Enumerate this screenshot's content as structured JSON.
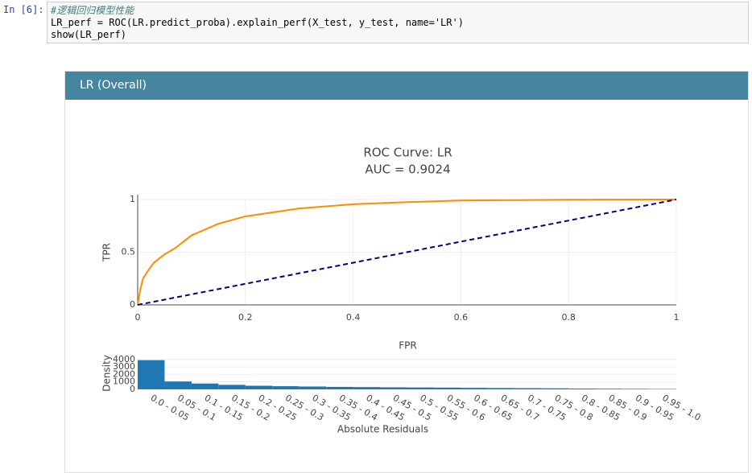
{
  "cell": {
    "prompt": "In  [6]:",
    "code": [
      "#逻辑回归模型性能",
      "LR_perf = ROC(LR.predict_proba).explain_perf(X_test, y_test, name='LR')",
      "show(LR_perf)"
    ]
  },
  "panel": {
    "title": "LR (Overall)"
  },
  "chart_data": [
    {
      "type": "line",
      "title": "ROC Curve: LR",
      "subtitle": "AUC = 0.9024",
      "x_label": "FPR",
      "y_label": "TPR",
      "xlim": [
        0,
        1
      ],
      "ylim": [
        0,
        1
      ],
      "xticks": [
        0,
        0.2,
        0.4,
        0.6,
        0.8,
        1
      ],
      "yticks": [
        0,
        0.5,
        1
      ],
      "grid": true,
      "series": [
        {
          "color": "#ff8c00",
          "dash": false,
          "x": [
            0,
            0.005,
            0.01,
            0.02,
            0.03,
            0.05,
            0.07,
            0.1,
            0.15,
            0.2,
            0.3,
            0.4,
            0.5,
            0.6,
            0.8,
            1
          ],
          "values": [
            0,
            0.15,
            0.25,
            0.33,
            0.4,
            0.48,
            0.54,
            0.66,
            0.77,
            0.84,
            0.915,
            0.955,
            0.975,
            0.99,
            0.998,
            1
          ]
        },
        {
          "color": "#000080",
          "dash": true,
          "x": [
            0,
            1
          ],
          "values": [
            0,
            1
          ]
        }
      ]
    },
    {
      "type": "bar",
      "x_label": "Absolute Residuals",
      "y_label": "Density",
      "color": "#1f77b4",
      "ylim": [
        0,
        4300
      ],
      "yticks": [
        0,
        1000,
        2000,
        3000,
        4000
      ],
      "grid": true,
      "categories": [
        "0.0 - 0.05",
        "0.05 - 0.1",
        "0.1 - 0.15",
        "0.15 - 0.2",
        "0.2 - 0.25",
        "0.25 - 0.3",
        "0.3 - 0.35",
        "0.35 - 0.4",
        "0.4 - 0.45",
        "0.45 - 0.5",
        "0.5 - 0.55",
        "0.55 - 0.6",
        "0.6 - 0.65",
        "0.65 - 0.7",
        "0.7 - 0.75",
        "0.75 - 0.8",
        "0.8 - 0.85",
        "0.85 - 0.9",
        "0.9 - 0.95",
        "0.95 - 1.0"
      ],
      "values": [
        3900,
        1050,
        780,
        600,
        480,
        420,
        380,
        330,
        300,
        270,
        250,
        230,
        200,
        180,
        160,
        140,
        110,
        90,
        70,
        50
      ]
    }
  ]
}
